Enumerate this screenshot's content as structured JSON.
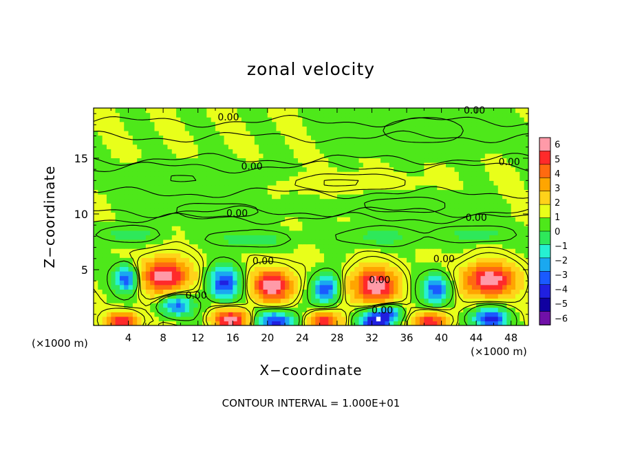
{
  "chart_data": {
    "type": "heatmap",
    "title": "zonal velocity",
    "xlabel": "X−coordinate",
    "ylabel": "Z−coordinate",
    "x_unit_left": "(×1000 m)",
    "x_unit_right": "(×1000 m)",
    "footer": "CONTOUR INTERVAL = 1.000E+01",
    "xlim": [
      0,
      50
    ],
    "ylim": [
      0,
      19.5
    ],
    "x_ticks": [
      4,
      8,
      12,
      16,
      20,
      24,
      28,
      32,
      36,
      40,
      44,
      48
    ],
    "y_ticks": [
      5,
      10,
      15
    ],
    "colorbar": {
      "min": -6,
      "max": 6,
      "ticks": [
        "6",
        "5",
        "4",
        "3",
        "2",
        "1",
        "0",
        "−1",
        "−2",
        "−3",
        "−4",
        "−5",
        "−6"
      ],
      "colors": [
        "#ff9aa8",
        "#ff2a2a",
        "#ff6a10",
        "#ffa500",
        "#ffd21a",
        "#e8ff1a",
        "#4ee81a",
        "#2ee85a",
        "#26f0d2",
        "#1aa8f0",
        "#1a5aff",
        "#2020e0",
        "#1000a0",
        "#7010a8"
      ]
    },
    "contour_labels": [
      {
        "text": "0.00",
        "x": 15.5,
        "y": 18.7
      },
      {
        "text": "0.00",
        "x": 43.8,
        "y": 19.3
      },
      {
        "text": "0.00",
        "x": 18.2,
        "y": 14.3
      },
      {
        "text": "0.00",
        "x": 47.8,
        "y": 14.7
      },
      {
        "text": "0.00",
        "x": 16.5,
        "y": 10.1
      },
      {
        "text": "0.00",
        "x": 44.0,
        "y": 9.7
      },
      {
        "text": "0.00",
        "x": 19.5,
        "y": 5.8
      },
      {
        "text": "0.00",
        "x": 40.3,
        "y": 6.0
      },
      {
        "text": "0.00",
        "x": 11.8,
        "y": 2.7
      },
      {
        "text": "0.00",
        "x": 32.9,
        "y": 4.1
      },
      {
        "text": "0.00",
        "x": 33.2,
        "y": 1.4
      }
    ],
    "features": [
      {
        "x": 8.2,
        "y": 4.5,
        "value": 6,
        "sx": 2.7,
        "sy": 1.5
      },
      {
        "x": 20.6,
        "y": 3.6,
        "value": 6,
        "sx": 2.3,
        "sy": 1.4
      },
      {
        "x": 32.3,
        "y": 3.6,
        "value": 6,
        "sx": 2.6,
        "sy": 1.6
      },
      {
        "x": 45.5,
        "y": 4.1,
        "value": 6,
        "sx": 3.0,
        "sy": 1.5
      },
      {
        "x": 15.8,
        "y": 0.5,
        "value": 5.8,
        "sx": 2.0,
        "sy": 0.9
      },
      {
        "x": 3.4,
        "y": 0.4,
        "value": 5.2,
        "sx": 1.8,
        "sy": 0.8
      },
      {
        "x": 26.5,
        "y": 0.4,
        "value": 5.2,
        "sx": 1.8,
        "sy": 0.8
      },
      {
        "x": 38.8,
        "y": 0.4,
        "value": 5.2,
        "sx": 1.8,
        "sy": 0.8
      },
      {
        "x": 21.0,
        "y": 0.35,
        "value": -6,
        "sx": 2.0,
        "sy": 0.9
      },
      {
        "x": 32.3,
        "y": 0.35,
        "value": -6,
        "sx": 2.0,
        "sy": 0.9
      },
      {
        "x": 45.5,
        "y": 0.6,
        "value": -6,
        "sx": 2.0,
        "sy": 0.9
      },
      {
        "x": 3.8,
        "y": 4.2,
        "value": -5.5,
        "sx": 1.3,
        "sy": 1.1
      },
      {
        "x": 15.0,
        "y": 3.8,
        "value": -5.5,
        "sx": 1.7,
        "sy": 1.4
      },
      {
        "x": 26.7,
        "y": 3.3,
        "value": -5.5,
        "sx": 1.4,
        "sy": 1.2
      },
      {
        "x": 39.4,
        "y": 3.3,
        "value": -5,
        "sx": 1.6,
        "sy": 1.2
      },
      {
        "x": 9.5,
        "y": 1.8,
        "value": -4.5,
        "sx": 1.8,
        "sy": 0.9
      },
      {
        "x": 34.0,
        "y": 1.2,
        "value": -4,
        "sx": 1.5,
        "sy": 0.7
      },
      {
        "x": 4.0,
        "y": 8.2,
        "value": -2,
        "sx": 3.0,
        "sy": 0.6
      },
      {
        "x": 18.0,
        "y": 7.8,
        "value": -2,
        "sx": 4.0,
        "sy": 0.6
      },
      {
        "x": 33.0,
        "y": 8.0,
        "value": -1.5,
        "sx": 4.5,
        "sy": 0.8
      },
      {
        "x": 44.0,
        "y": 8.2,
        "value": -1.5,
        "sx": 4.0,
        "sy": 0.7
      },
      {
        "x": 14.0,
        "y": 10.3,
        "value": -0.8,
        "sx": 6.0,
        "sy": 0.9
      },
      {
        "x": 36.0,
        "y": 10.8,
        "value": -0.8,
        "sx": 6.0,
        "sy": 0.9
      },
      {
        "x": 12.0,
        "y": 13.2,
        "value": -0.5,
        "sx": 8.0,
        "sy": 1.0
      },
      {
        "x": 38.0,
        "y": 17.5,
        "value": -0.8,
        "sx": 6.0,
        "sy": 1.5
      },
      {
        "x": 29.0,
        "y": 12.8,
        "value": 0.7,
        "sx": 6.0,
        "sy": 0.6
      }
    ]
  }
}
